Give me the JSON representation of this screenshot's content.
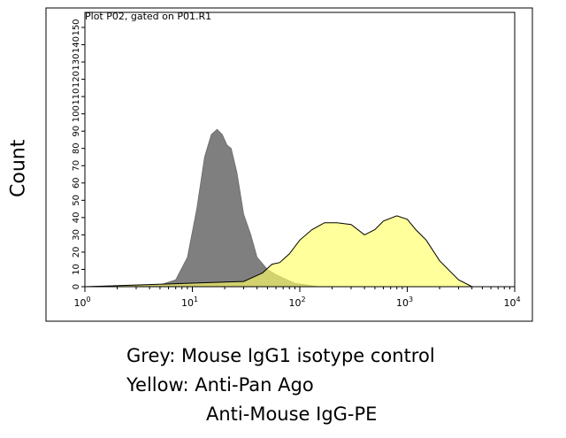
{
  "chart_data": {
    "type": "area",
    "title": "Plot P02, gated on P01.R1",
    "ylabel": "Count",
    "xlabel": "",
    "x_scale": "log",
    "xlim": [
      1,
      10000
    ],
    "ylim": [
      0,
      150
    ],
    "x_ticks": [
      {
        "value": 1,
        "base": "10",
        "exp": "0"
      },
      {
        "value": 10,
        "base": "10",
        "exp": "1"
      },
      {
        "value": 100,
        "base": "10",
        "exp": "2"
      },
      {
        "value": 1000,
        "base": "10",
        "exp": "3"
      },
      {
        "value": 10000,
        "base": "10",
        "exp": "4"
      }
    ],
    "y_ticks": [
      "0",
      "10",
      "20",
      "30",
      "40",
      "50",
      "60",
      "70",
      "80",
      "90",
      "100",
      "110",
      "120",
      "130",
      "140",
      "150"
    ],
    "grid": false,
    "series": [
      {
        "color": "#7f7f7f",
        "x": [
          1,
          5,
          7,
          9,
          11,
          13,
          15,
          17,
          19,
          21,
          23,
          26,
          30,
          35,
          40,
          50,
          60,
          70,
          90,
          150,
          10000
        ],
        "y": [
          0,
          1,
          4,
          17,
          45,
          75,
          88,
          91,
          88,
          82,
          80,
          66,
          42,
          30,
          17,
          10,
          7,
          5,
          2,
          0,
          0
        ]
      },
      {
        "color": "#ffff66",
        "x": [
          1,
          30,
          45,
          55,
          65,
          80,
          100,
          130,
          170,
          220,
          300,
          400,
          500,
          600,
          800,
          1000,
          1200,
          1500,
          2000,
          3000,
          4000,
          10000
        ],
        "y": [
          0,
          3,
          8,
          13,
          14,
          19,
          27,
          33,
          37,
          37,
          36,
          30,
          33,
          38,
          41,
          39,
          33,
          27,
          15,
          4,
          0,
          0
        ]
      }
    ],
    "legend": {
      "line1": "Grey: Mouse IgG1 isotype control",
      "line2": "Yellow: Anti-Pan Ago",
      "line3": "Anti-Mouse IgG-PE"
    }
  }
}
